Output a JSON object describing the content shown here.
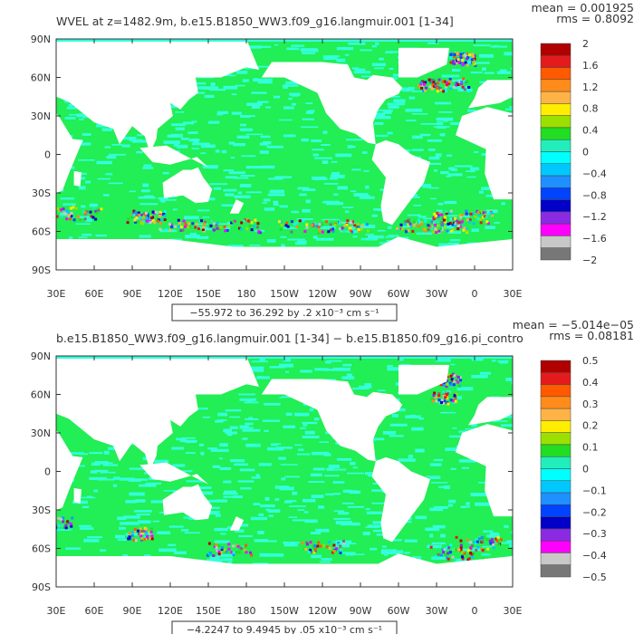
{
  "panels": [
    {
      "title": "WVEL at z=1482.9m, b.e15.B1850_WW3.f09_g16.langmuir.001 [1-34]",
      "stats": {
        "mean_label": "mean = 0.001925",
        "rms_label": "rms = 0.8092"
      },
      "range_label": "−55.972 to 36.292 by .2 x10⁻³ cm s⁻¹",
      "colorbar_labels": [
        "2",
        "1.6",
        "1.2",
        "0.8",
        "0.4",
        "0",
        "−0.4",
        "−0.8",
        "−1.2",
        "−1.6",
        "−2"
      ]
    },
    {
      "title": "b.e15.B1850_WW3.f09_g16.langmuir.001 [1-34] − b.e15.B1850.f09_g16.pi_contro",
      "stats": {
        "mean_label": "mean = −5.014e−05",
        "rms_label": "rms = 0.08181"
      },
      "range_label": "−4.2247 to 9.4945 by .05 x10⁻³ cm s⁻¹",
      "colorbar_labels": [
        "0.5",
        "0.4",
        "0.3",
        "0.2",
        "0.1",
        "0",
        "−0.1",
        "−0.2",
        "−0.3",
        "−0.4",
        "−0.5"
      ]
    }
  ],
  "chart_data": [
    {
      "type": "heatmap",
      "title": "WVEL at z=1482.9m, b.e15.B1850_WW3.f09_g16.langmuir.001 [1-34]",
      "x_ticks": [
        "30E",
        "60E",
        "90E",
        "120E",
        "150E",
        "180",
        "150W",
        "120W",
        "90W",
        "60W",
        "30W",
        "0",
        "30E"
      ],
      "y_ticks": [
        "90N",
        "60N",
        "30N",
        "0",
        "30S",
        "60S",
        "90S"
      ],
      "xlim": [
        30,
        390
      ],
      "ylim": [
        -90,
        90
      ],
      "colorbar_levels": [
        2,
        1.6,
        1.2,
        0.8,
        0.4,
        0,
        -0.4,
        -0.8,
        -1.2,
        -1.6,
        -2
      ],
      "colorbar_colors": [
        "#b00000",
        "#e41a1c",
        "#ff5a00",
        "#ff8c1a",
        "#ffb347",
        "#ffee00",
        "#9be000",
        "#22dd22",
        "#22eebb",
        "#00ffff",
        "#00c8ff",
        "#1e90ff",
        "#0044ff",
        "#0000c8",
        "#8a2be2",
        "#ff00ff",
        "#c8c8c8",
        "#777777"
      ],
      "mean": 0.001925,
      "rms": 0.8092,
      "range": {
        "min": -55.972,
        "max": 36.292,
        "interval": 0.2,
        "units": "x10^-3 cm s^-1"
      }
    },
    {
      "type": "heatmap",
      "title": "b.e15.B1850_WW3.f09_g16.langmuir.001 [1-34] − b.e15.B1850.f09_g16.pi_contro",
      "x_ticks": [
        "30E",
        "60E",
        "90E",
        "120E",
        "150E",
        "180",
        "150W",
        "120W",
        "90W",
        "60W",
        "30W",
        "0",
        "30E"
      ],
      "y_ticks": [
        "90N",
        "60N",
        "30N",
        "0",
        "30S",
        "60S",
        "90S"
      ],
      "xlim": [
        30,
        390
      ],
      "ylim": [
        -90,
        90
      ],
      "colorbar_levels": [
        0.5,
        0.4,
        0.3,
        0.2,
        0.1,
        0,
        -0.1,
        -0.2,
        -0.3,
        -0.4,
        -0.5
      ],
      "colorbar_colors": [
        "#b00000",
        "#e41a1c",
        "#ff5a00",
        "#ff8c1a",
        "#ffb347",
        "#ffee00",
        "#9be000",
        "#22dd22",
        "#22eebb",
        "#00ffff",
        "#00c8ff",
        "#1e90ff",
        "#0044ff",
        "#0000c8",
        "#8a2be2",
        "#ff00ff",
        "#c8c8c8",
        "#777777"
      ],
      "mean": -5.014e-05,
      "rms": 0.08181,
      "range": {
        "min": -4.2247,
        "max": 9.4945,
        "interval": 0.05,
        "units": "x10^-3 cm s^-1"
      }
    }
  ],
  "colors": {
    "ocean_base": "#22ee55",
    "ocean_alt": "#33ffdd",
    "land": "#ffffff",
    "frame": "#333333"
  }
}
